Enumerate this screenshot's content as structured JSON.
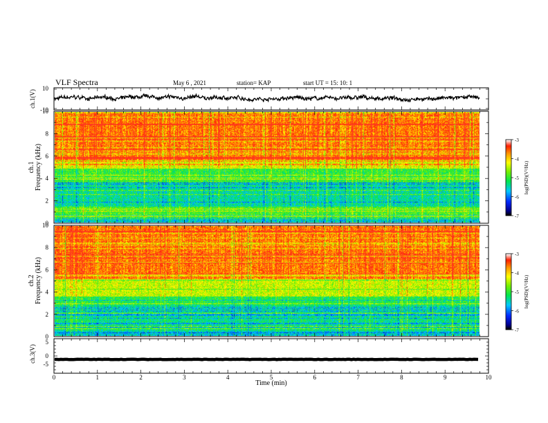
{
  "header": {
    "title": "VLF Spectra",
    "date": "May 6 , 2021",
    "station": "station= KAP",
    "start": "start UT =  15: 10: 1"
  },
  "chart_data": {
    "type": "heatmap",
    "x_axis": {
      "label": "Time (min)",
      "range": [
        0,
        10
      ],
      "ticks": [
        0,
        1,
        2,
        3,
        4,
        5,
        6,
        7,
        8,
        9,
        10
      ],
      "data_end": 9.8
    },
    "panels": [
      {
        "id": "ch1-waveform",
        "type": "line",
        "ylabel": "ch.1(V)",
        "yrange": [
          -10,
          10
        ],
        "ticks": [
          "10",
          "-10"
        ],
        "mean_level": 0.5,
        "amplitude": 3
      },
      {
        "id": "ch1-spectrogram",
        "type": "heatmap",
        "ylabel": "ch.1\nFrequency (kHz)",
        "ylabel_lines": [
          "ch.1",
          "Frequency (kHz)"
        ],
        "yrange": [
          0,
          10
        ],
        "ticks": [
          "0",
          "2",
          "4",
          "6",
          "8",
          "10"
        ],
        "colorbar": {
          "label": "log(PSD)(V²/Hz)",
          "range": [
            -7,
            -3
          ],
          "ticks": [
            "-3",
            "-4",
            "-5",
            "-6",
            "-7"
          ]
        },
        "bands_khz": [
          {
            "from": 0,
            "to": 0.4,
            "level": -5.6
          },
          {
            "from": 0.4,
            "to": 1.4,
            "level": -4.9
          },
          {
            "from": 1.4,
            "to": 3.6,
            "level": -5.4
          },
          {
            "from": 3.6,
            "to": 4.9,
            "level": -5.0
          },
          {
            "from": 4.9,
            "to": 5.6,
            "level": -4.3
          },
          {
            "from": 5.6,
            "to": 10,
            "level": -3.6
          }
        ]
      },
      {
        "id": "ch2-spectrogram",
        "type": "heatmap",
        "ylabel": "ch.2\nFrequency (kHz)",
        "ylabel_lines": [
          "ch.2",
          "Frequency (kHz)"
        ],
        "yrange": [
          0,
          10
        ],
        "ticks": [
          "0",
          "2",
          "4",
          "6",
          "8",
          "10"
        ],
        "colorbar": {
          "label": "log(PSD)(V²/Hz)",
          "range": [
            -7,
            -3
          ],
          "ticks": [
            "-3",
            "-4",
            "-5",
            "-6",
            "-7"
          ]
        },
        "bands_khz": [
          {
            "from": 0,
            "to": 0.4,
            "level": -5.6
          },
          {
            "from": 0.4,
            "to": 2.8,
            "level": -5.3
          },
          {
            "from": 2.8,
            "to": 3.6,
            "level": -5.1
          },
          {
            "from": 3.6,
            "to": 5.2,
            "level": -4.4
          },
          {
            "from": 5.2,
            "to": 10,
            "level": -3.6
          }
        ]
      },
      {
        "id": "ch3-waveform",
        "type": "line",
        "ylabel": "ch.3(V)",
        "yrange": [
          -5,
          5
        ],
        "ticks": [
          "5",
          "0",
          "-5"
        ],
        "mean_level": -1.0,
        "amplitude": 0.4
      }
    ],
    "grid": false
  }
}
